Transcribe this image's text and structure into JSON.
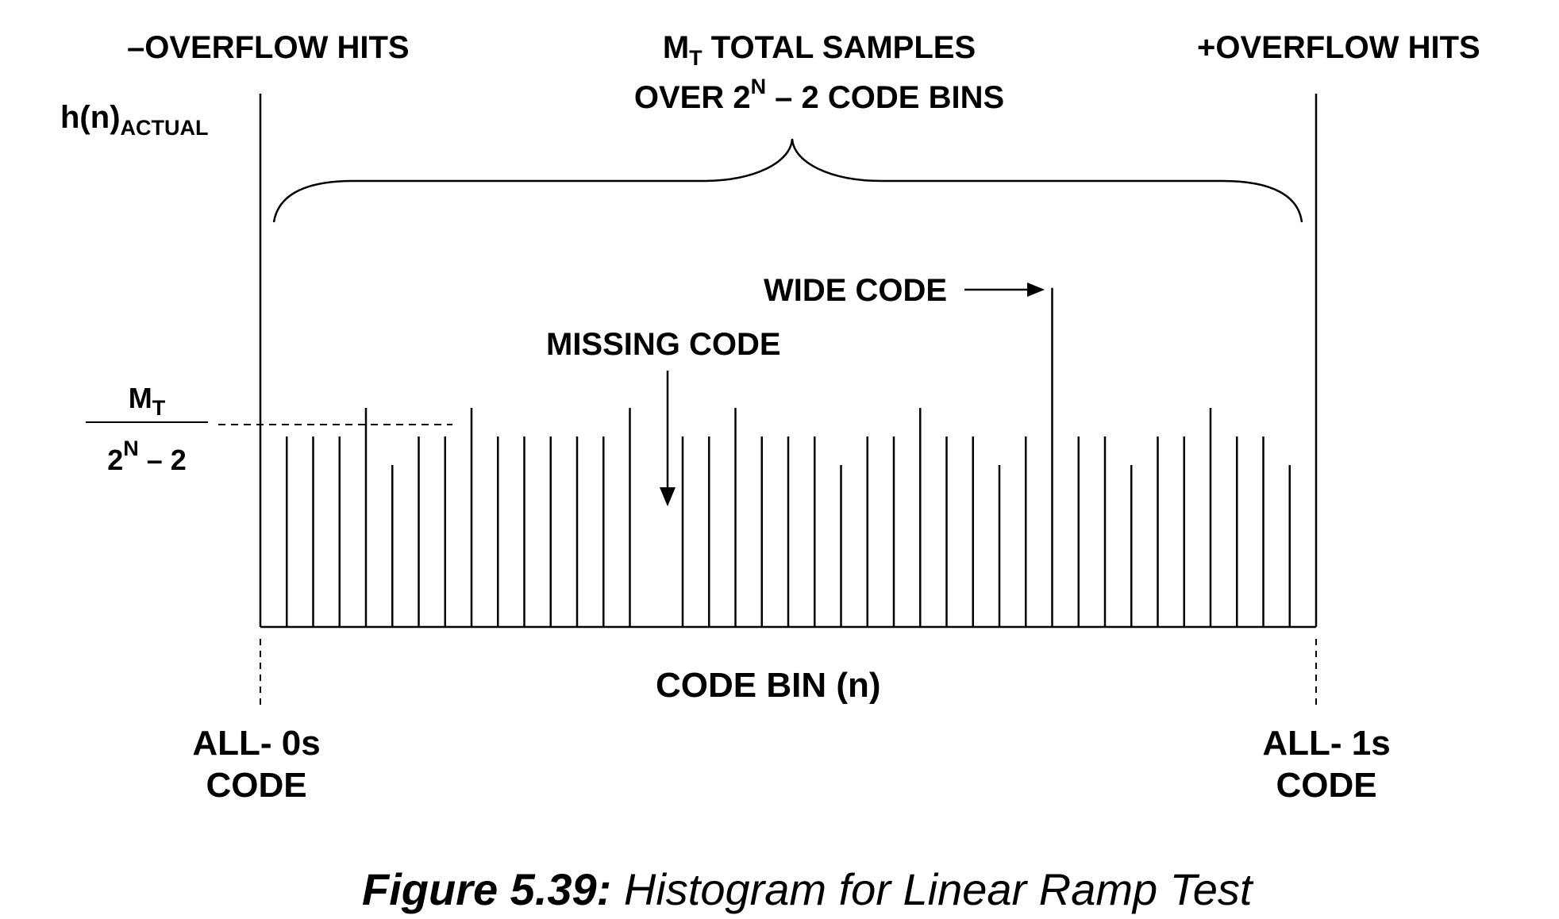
{
  "labels": {
    "neg_overflow": "–OVERFLOW HITS",
    "pos_overflow": "+OVERFLOW HITS",
    "total_samples_m": "M",
    "total_samples_sub": "T",
    "total_samples_rest": " TOTAL SAMPLES",
    "code_bins_pre": "OVER 2",
    "code_bins_sup": "N",
    "code_bins_post": " – 2 CODE BINS",
    "y_axis_main": "h(n)",
    "y_axis_sub": "ACTUAL",
    "ideal_numerator_m": "M",
    "ideal_numerator_sub": "T",
    "ideal_denominator_pre": "2",
    "ideal_denominator_sup": "N",
    "ideal_denominator_post": " – 2",
    "wide_code": "WIDE CODE",
    "missing_code": "MISSING CODE",
    "x_axis": "CODE BIN (n)",
    "all_zeros_line1": "ALL- 0s",
    "all_zeros_line2": "CODE",
    "all_ones_line1": "ALL- 1s",
    "all_ones_line2": "CODE"
  },
  "caption": {
    "figure_number": "Figure 5.39:",
    "title": " Histogram for Linear Ramp Test"
  },
  "chart_data": {
    "type": "bar",
    "note_values": "relative bar heights per code bin; 1.0 = ideal M_T/(2^N-2); 0 = missing code",
    "values": [
      1.0,
      1.0,
      1.0,
      1.15,
      0.85,
      1.0,
      1.0,
      1.15,
      1.0,
      1.0,
      1.0,
      1.0,
      1.0,
      1.15,
      0,
      1.0,
      1.0,
      1.15,
      1.0,
      1.0,
      1.0,
      0.85,
      1.0,
      1.0,
      1.15,
      1.0,
      1.0,
      0.85,
      1.0,
      1.78,
      1.0,
      1.0,
      0.85,
      1.0,
      1.0,
      1.15,
      1.0,
      1.0,
      0.85
    ],
    "overflow_bars": {
      "negative": 2.8,
      "positive": 2.8
    },
    "missing_code_index": 14,
    "wide_code_index": 29,
    "ideal_value": 1.0,
    "colors": {
      "stroke": "#000000",
      "background": "#ffffff"
    }
  }
}
